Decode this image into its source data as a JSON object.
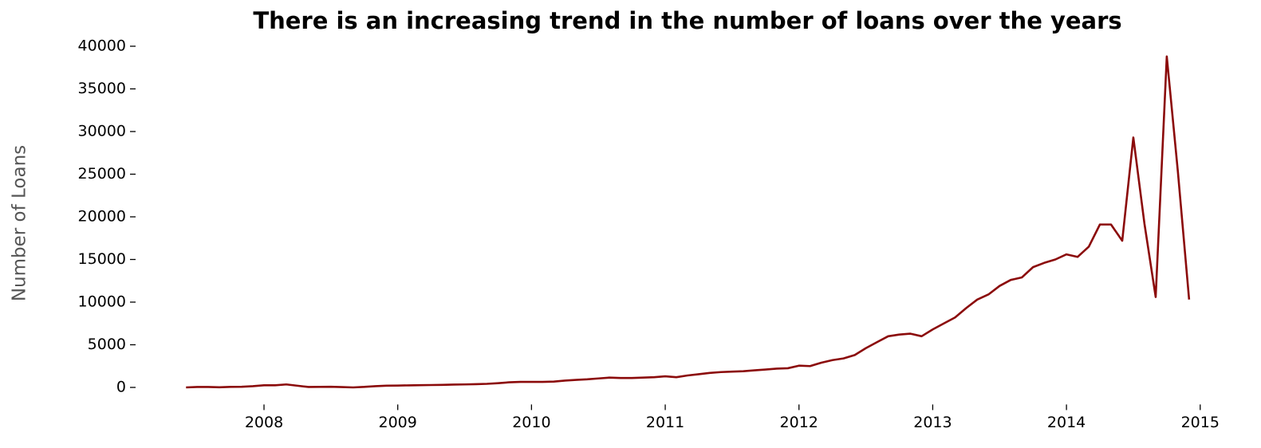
{
  "chart_data": {
    "type": "line",
    "title": "There is an increasing trend in the number of loans over the years",
    "ylabel": "Number of Loans",
    "x": [
      2007.417,
      2007.5,
      2007.583,
      2007.667,
      2007.75,
      2007.833,
      2007.917,
      2008.0,
      2008.083,
      2008.167,
      2008.25,
      2008.333,
      2008.417,
      2008.5,
      2008.583,
      2008.667,
      2008.75,
      2008.833,
      2008.917,
      2009.0,
      2009.083,
      2009.167,
      2009.25,
      2009.333,
      2009.417,
      2009.5,
      2009.583,
      2009.667,
      2009.75,
      2009.833,
      2009.917,
      2010.0,
      2010.083,
      2010.167,
      2010.25,
      2010.333,
      2010.417,
      2010.5,
      2010.583,
      2010.667,
      2010.75,
      2010.833,
      2010.917,
      2011.0,
      2011.083,
      2011.167,
      2011.25,
      2011.333,
      2011.417,
      2011.5,
      2011.583,
      2011.667,
      2011.75,
      2011.833,
      2011.917,
      2012.0,
      2012.083,
      2012.167,
      2012.25,
      2012.333,
      2012.417,
      2012.5,
      2012.583,
      2012.667,
      2012.75,
      2012.833,
      2012.917,
      2013.0,
      2013.083,
      2013.167,
      2013.25,
      2013.333,
      2013.417,
      2013.5,
      2013.583,
      2013.667,
      2013.75,
      2013.833,
      2013.917,
      2014.0,
      2014.083,
      2014.167,
      2014.25,
      2014.333,
      2014.417,
      2014.5,
      2014.583,
      2014.667,
      2014.75,
      2014.833,
      2014.917
    ],
    "series": [
      {
        "name": "Number of Loans",
        "color": "#8b0a0a",
        "values": [
          0,
          50,
          50,
          20,
          60,
          80,
          150,
          250,
          250,
          350,
          200,
          50,
          60,
          80,
          40,
          0,
          60,
          150,
          200,
          220,
          240,
          260,
          280,
          300,
          330,
          350,
          380,
          420,
          500,
          600,
          650,
          650,
          650,
          680,
          800,
          880,
          950,
          1050,
          1150,
          1100,
          1100,
          1150,
          1200,
          1300,
          1200,
          1400,
          1550,
          1700,
          1800,
          1850,
          1900,
          2000,
          2100,
          2200,
          2250,
          2550,
          2500,
          2900,
          3200,
          3400,
          3800,
          4600,
          5300,
          6000,
          6200,
          6300,
          6000,
          6800,
          7500,
          8200,
          9300,
          10300,
          10900,
          11900,
          12600,
          12900,
          14100,
          14600,
          15000,
          15600,
          15300,
          16500,
          19100,
          19100,
          17200,
          29300,
          19200,
          10600,
          38800,
          25300,
          10300
        ]
      }
    ],
    "xlim": [
      2007.01,
      2015.21
    ],
    "xticks": [
      2008,
      2009,
      2010,
      2011,
      2012,
      2013,
      2014,
      2015
    ],
    "ylim": [
      -2000,
      42000
    ],
    "yticks": [
      0,
      5000,
      10000,
      15000,
      20000,
      25000,
      30000,
      35000,
      40000
    ]
  }
}
